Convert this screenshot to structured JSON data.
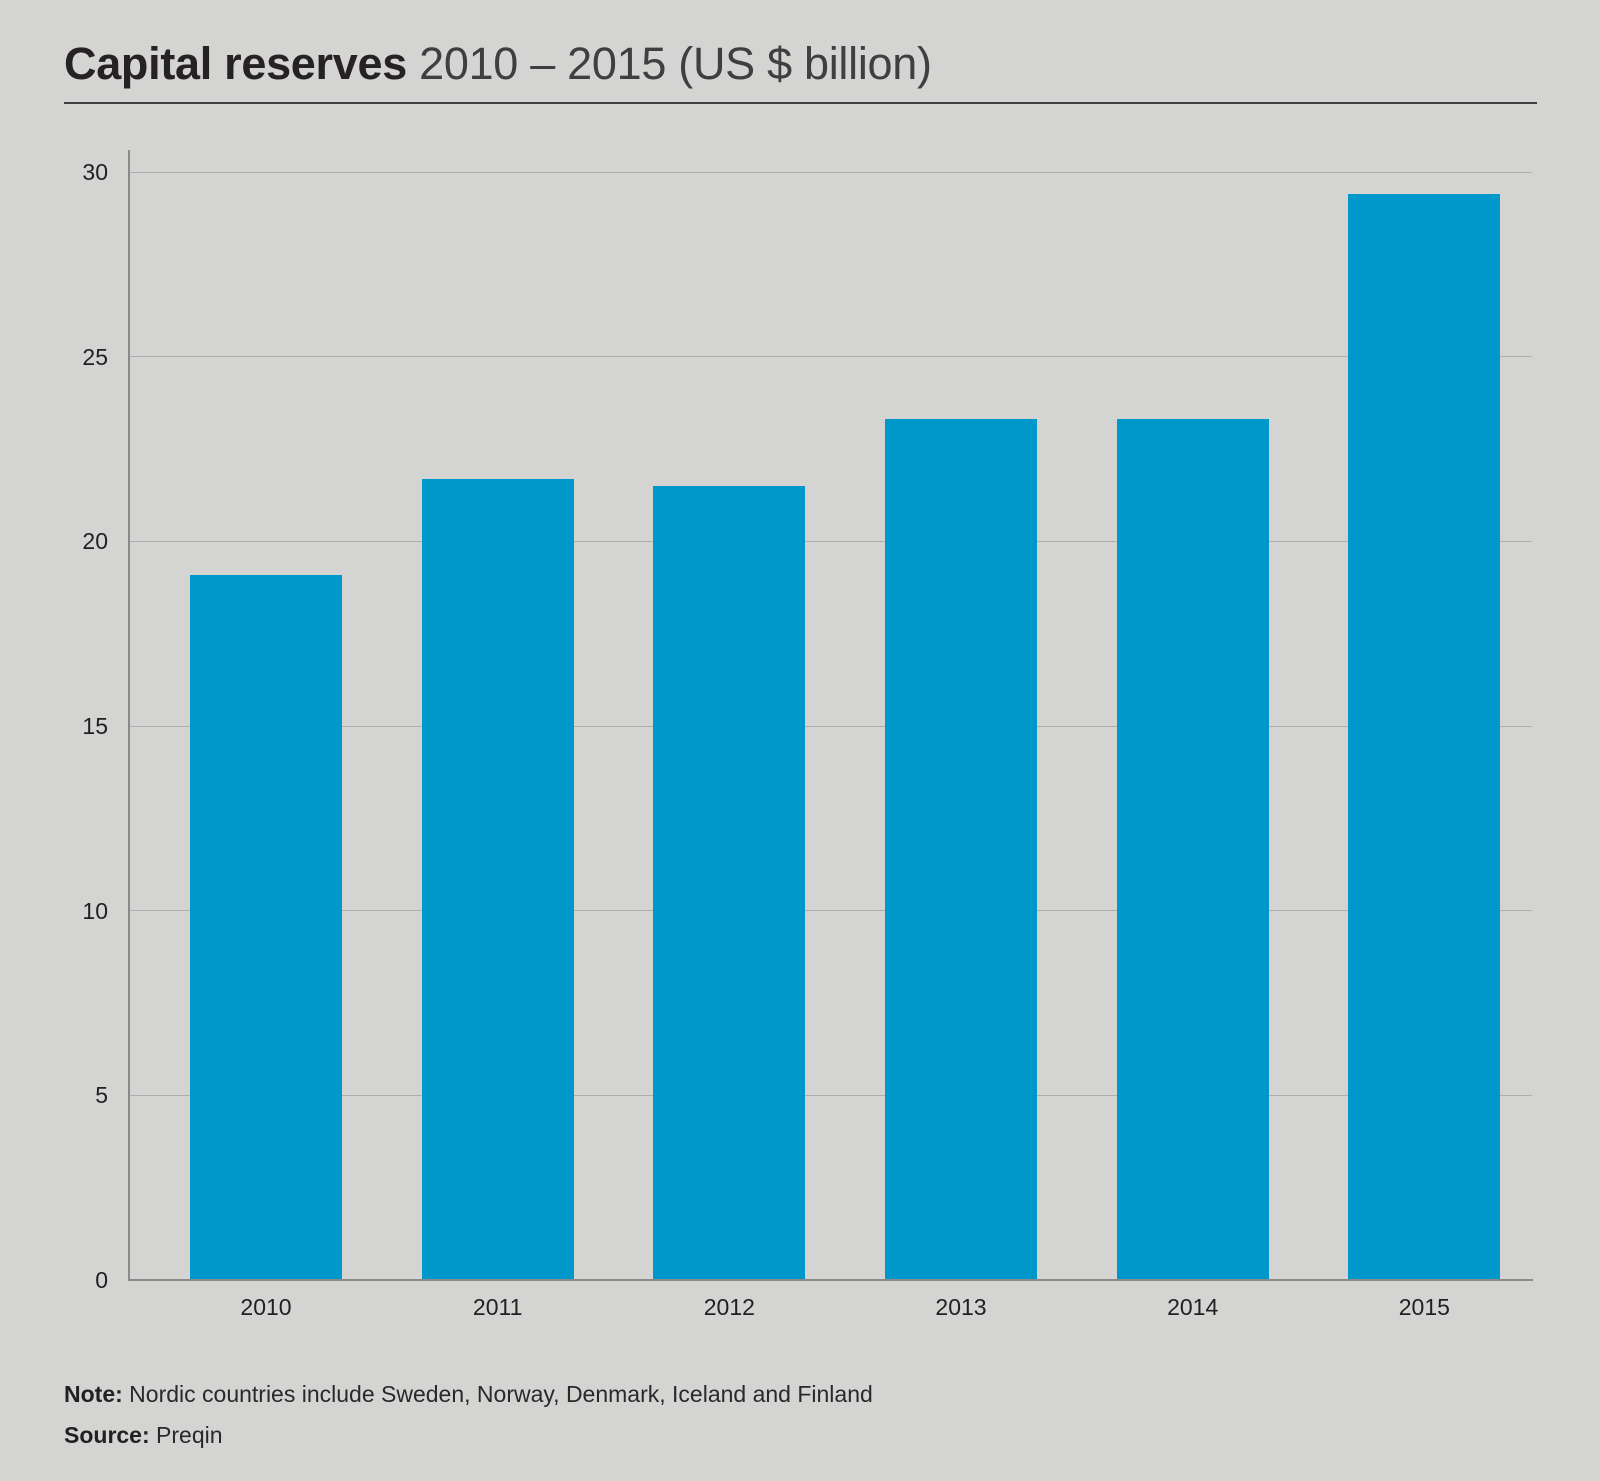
{
  "title": {
    "bold": "Capital reserves",
    "rest": "2010 – 2015 (US $ billion)"
  },
  "chart_data": {
    "type": "bar",
    "title": "Capital reserves 2010 – 2015 (US $ billion)",
    "categories": [
      "2010",
      "2011",
      "2012",
      "2013",
      "2014",
      "2015"
    ],
    "values": [
      19.1,
      21.7,
      21.5,
      23.3,
      23.3,
      29.4
    ],
    "xlabel": "",
    "ylabel": "",
    "unit": "US $ billion",
    "ylim": [
      0,
      30
    ],
    "yticks": [
      0,
      5,
      10,
      15,
      20,
      25,
      30
    ],
    "grid": true,
    "legend": "none",
    "bar_color": "#0098ca"
  },
  "note": {
    "label": "Note:",
    "text": "Nordic countries include Sweden, Norway, Denmark, Iceland and Finland"
  },
  "source": {
    "label": "Source:",
    "text": "Preqin"
  },
  "colors": {
    "accent": "#0098ca",
    "background": "#d4d4d3",
    "text_dark": "#262224",
    "text_secondary": "#3f3e40",
    "gridline": "#aeaeae",
    "axis_line": "#8a8a8a",
    "title_rule": "#414141"
  }
}
